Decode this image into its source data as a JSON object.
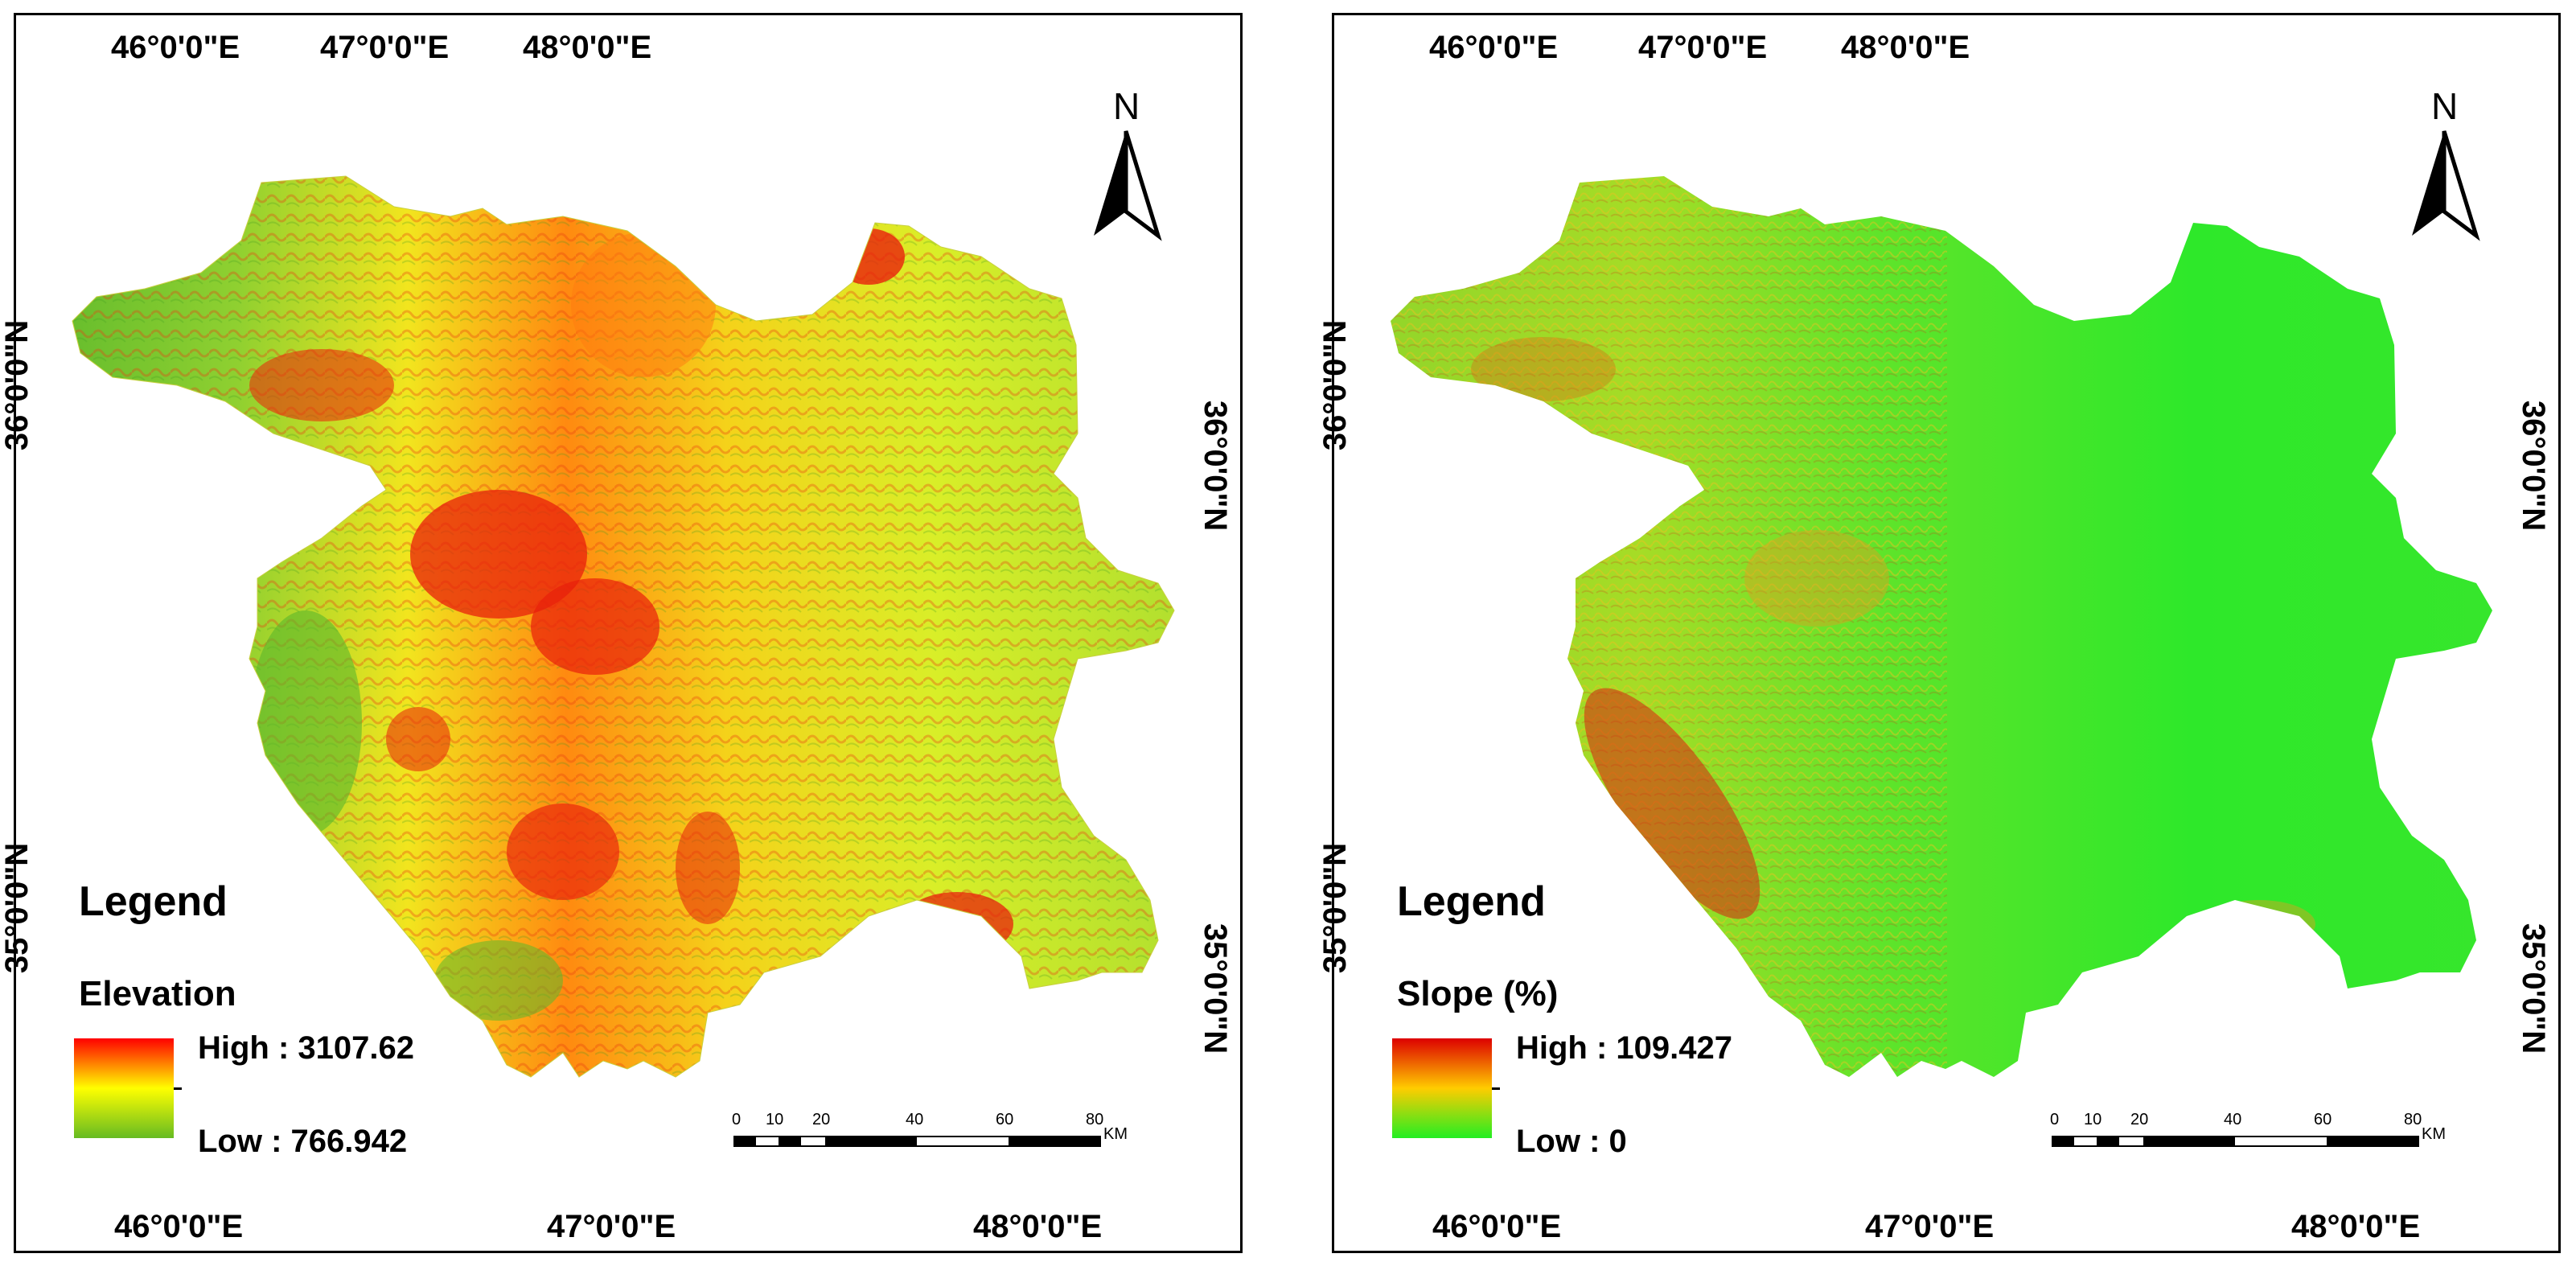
{
  "panels": [
    {
      "id": "elevation",
      "top_labels": [
        "46°0'0\"E",
        "47°0'0\"E",
        "48°0'0\"E"
      ],
      "bottom_labels": [
        "46°0'0\"E",
        "47°0'0\"E",
        "48°0'0\"E"
      ],
      "left_labels": [
        "36°0'0\"N",
        "35°0'0\"N"
      ],
      "right_labels": [
        "36°0'0\"N",
        "35°0'0\"N"
      ],
      "north_label": "N",
      "legend": {
        "title": "Legend",
        "variable": "Elevation",
        "high": "High : 3107.62",
        "low": "Low : 766.942",
        "high_color": "#ff0000",
        "mid_color": "#ffff00",
        "low_color": "#66bb22"
      },
      "scale": {
        "ticks": [
          "0",
          "10",
          "20",
          "40",
          "60",
          "80"
        ],
        "unit": "KM"
      }
    },
    {
      "id": "slope",
      "top_labels": [
        "46°0'0\"E",
        "47°0'0\"E",
        "48°0'0\"E"
      ],
      "bottom_labels": [
        "46°0'0\"E",
        "47°0'0\"E",
        "48°0'0\"E"
      ],
      "left_labels": [
        "36°0'0\"N",
        "35°0'0\"N"
      ],
      "right_labels": [
        "36°0'0\"N",
        "35°0'0\"N"
      ],
      "north_label": "N",
      "legend": {
        "title": "Legend",
        "variable": "Slope (%)",
        "high": "High : 109.427",
        "low": "Low : 0",
        "high_color": "#dd0000",
        "mid_color": "#ffcc00",
        "low_color": "#22ee22"
      },
      "scale": {
        "ticks": [
          "0",
          "10",
          "20",
          "40",
          "60",
          "80"
        ],
        "unit": "KM"
      }
    }
  ]
}
